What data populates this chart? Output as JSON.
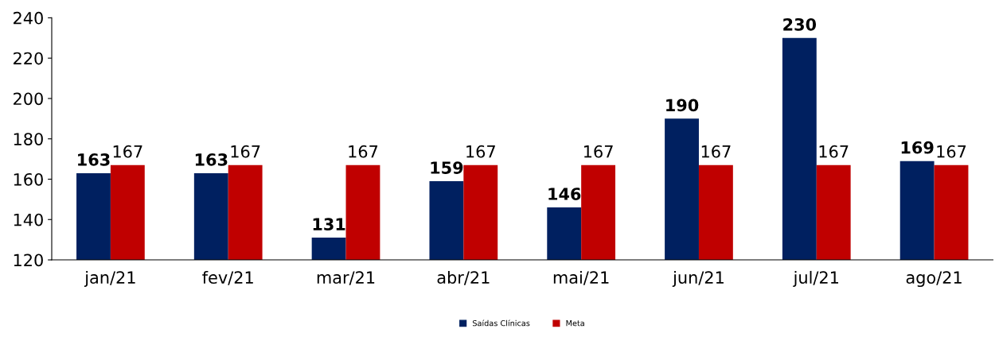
{
  "chart_data": {
    "type": "bar",
    "categories": [
      "jan/21",
      "fev/21",
      "mar/21",
      "abr/21",
      "mai/21",
      "jun/21",
      "jul/21",
      "ago/21"
    ],
    "series": [
      {
        "name": "Saídas Clínicas",
        "color": "#002060",
        "values": [
          163,
          163,
          131,
          159,
          146,
          190,
          230,
          169
        ]
      },
      {
        "name": "Meta",
        "color": "#c00000",
        "values": [
          167,
          167,
          167,
          167,
          167,
          167,
          167,
          167
        ]
      }
    ],
    "ylim": [
      120,
      240
    ],
    "yticks": [
      120,
      140,
      160,
      180,
      200,
      220,
      240
    ],
    "data_labels": true,
    "grid": false,
    "legend": "bottom"
  }
}
